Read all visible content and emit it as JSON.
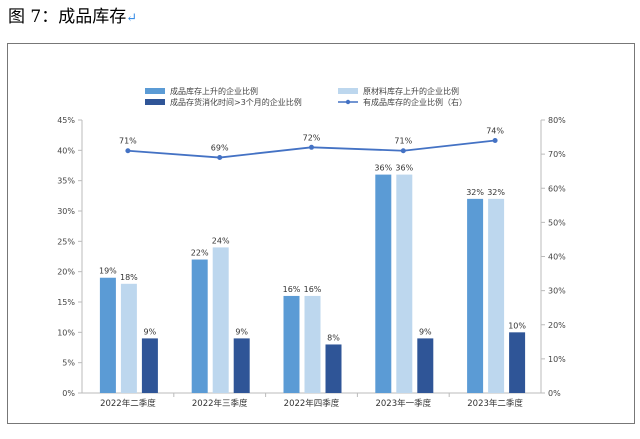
{
  "title": "图 7：成品库存",
  "return_mark": "↵",
  "chart_data": {
    "type": "bar+line",
    "categories": [
      "2022年二季度",
      "2022年三季度",
      "2022年四季度",
      "2023年一季度",
      "2023年二季度"
    ],
    "series": [
      {
        "name": "成品库存上升的企业比例",
        "axis": "left",
        "type": "bar",
        "color": "#5b9bd5",
        "values": [
          19,
          22,
          16,
          36,
          32
        ],
        "labels": [
          "19%",
          "22%",
          "16%",
          "36%",
          "32%"
        ]
      },
      {
        "name": "原材料库存上升的企业比例",
        "axis": "left",
        "type": "bar",
        "color": "#bdd7ee",
        "values": [
          18,
          24,
          16,
          36,
          32
        ],
        "labels": [
          "18%",
          "24%",
          "16%",
          "36%",
          "32%"
        ]
      },
      {
        "name": "成品存货消化时间>3个月的企业比例",
        "axis": "left",
        "type": "bar",
        "color": "#2f5597",
        "values": [
          9,
          9,
          8,
          9,
          10
        ],
        "labels": [
          "9%",
          "9%",
          "8%",
          "9%",
          "10%"
        ]
      },
      {
        "name": "有成品库存的企业比例（右）",
        "axis": "right",
        "type": "line",
        "color": "#4472c4",
        "values": [
          71,
          69,
          72,
          71,
          74
        ],
        "labels": [
          "71%",
          "69%",
          "72%",
          "71%",
          "74%"
        ]
      }
    ],
    "left_axis": {
      "ylim": [
        0,
        45
      ],
      "ticks": [
        "0%",
        "5%",
        "10%",
        "15%",
        "20%",
        "25%",
        "30%",
        "35%",
        "40%",
        "45%"
      ]
    },
    "right_axis": {
      "ylim": [
        0,
        80
      ],
      "ticks": [
        "0%",
        "10%",
        "20%",
        "30%",
        "40%",
        "50%",
        "60%",
        "70%",
        "80%"
      ]
    },
    "legend": "top",
    "grid": false
  }
}
